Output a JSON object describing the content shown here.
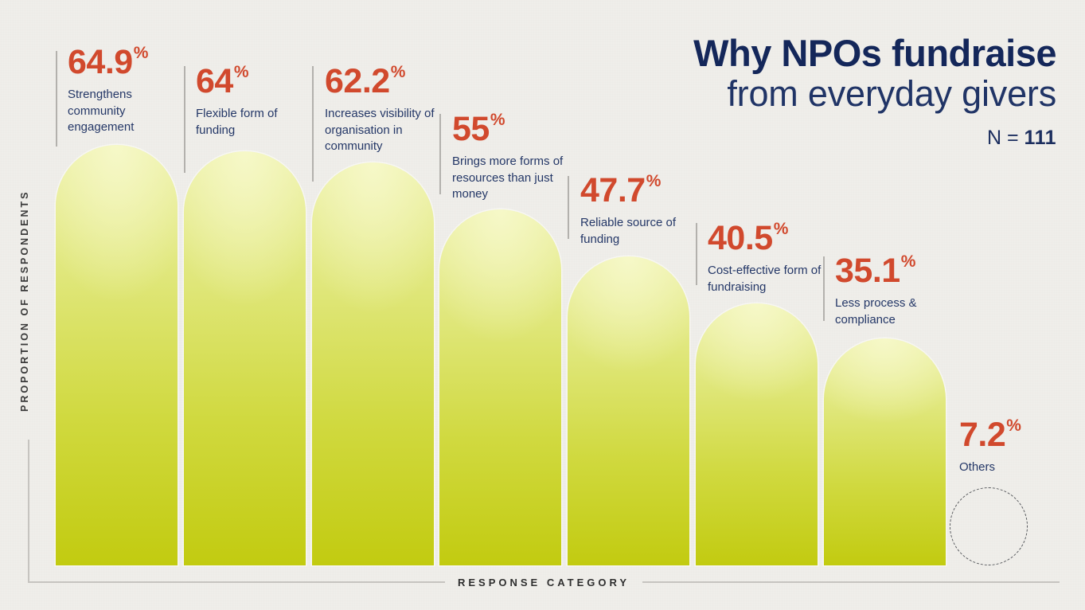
{
  "title": {
    "line1": "Why NPOs fundraise",
    "line2": "from everyday givers",
    "sample_prefix": "N = ",
    "sample_value": "111"
  },
  "axes": {
    "y_label": "PROPORTION OF RESPONDENTS",
    "x_label": "RESPONSE CATEGORY"
  },
  "unit": "%",
  "chart_data": {
    "type": "bar",
    "title": "Why NPOs fundraise from everyday givers",
    "sample_size": 111,
    "xlabel": "RESPONSE CATEGORY",
    "ylabel": "PROPORTION OF RESPONDENTS",
    "unit": "percent of respondents",
    "ylim": [
      0,
      65
    ],
    "grid": false,
    "legend": "none",
    "categories": [
      "Strengthens community engagement",
      "Flexible form of funding",
      "Increases visibility of organisation in community",
      "Brings more forms of resources than just money",
      "Reliable source of funding",
      "Cost-effective form of fundraising",
      "Less process & compliance",
      "Others"
    ],
    "values": [
      64.9,
      64,
      62.2,
      55,
      47.7,
      40.5,
      35.1,
      7.2
    ],
    "value_labels": [
      "64.9",
      "64",
      "62.2",
      "55",
      "47.7",
      "40.5",
      "35.1",
      "7.2"
    ],
    "style_note": "rounded-top gradient bars; last category (Others) drawn as dashed empty circle"
  },
  "colors": {
    "background": "#efeeea",
    "bar_gradient_top": "#f0f2ab",
    "bar_gradient_bottom": "#c2cb10",
    "value_text": "#d1492d",
    "category_text": "#243767",
    "title_text": "#14275a",
    "axis_line": "#c6c4c0",
    "axis_text": "#333333",
    "leader_line": "#b3b1ad",
    "dashed_circle": "#56585c"
  }
}
